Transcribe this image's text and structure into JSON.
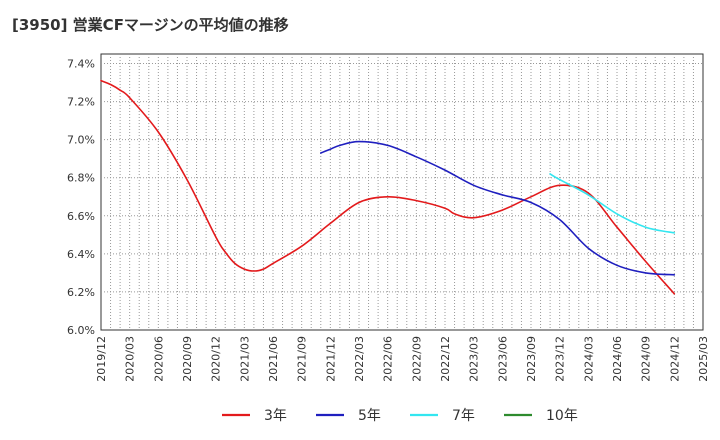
{
  "chart_data": {
    "type": "line",
    "title": "[3950]  営業CFマージンの平均値の推移",
    "xlabel": "",
    "ylabel": "",
    "x_ticks": [
      "2019/12",
      "2020/03",
      "2020/06",
      "2020/09",
      "2020/12",
      "2021/03",
      "2021/06",
      "2021/09",
      "2021/12",
      "2022/03",
      "2022/06",
      "2022/09",
      "2022/12",
      "2023/03",
      "2023/06",
      "2023/09",
      "2023/12",
      "2024/03",
      "2024/06",
      "2024/09",
      "2024/12",
      "2025/03"
    ],
    "y_ticks": [
      "6.0%",
      "6.2%",
      "6.4%",
      "6.6%",
      "6.8%",
      "7.0%",
      "7.2%",
      "7.4%"
    ],
    "ylim": [
      6.0,
      7.45
    ],
    "grid": true,
    "legend_position": "bottom",
    "series": [
      {
        "name": "3年",
        "color": "#e31a1c",
        "points": [
          [
            "2019/12",
            7.31
          ],
          [
            "2020/01",
            7.29
          ],
          [
            "2020/02",
            7.26
          ],
          [
            "2020/03",
            7.22
          ],
          [
            "2020/06",
            7.04
          ],
          [
            "2020/09",
            6.79
          ],
          [
            "2020/12",
            6.49
          ],
          [
            "2021/01",
            6.41
          ],
          [
            "2021/02",
            6.35
          ],
          [
            "2021/03",
            6.32
          ],
          [
            "2021/04",
            6.31
          ],
          [
            "2021/05",
            6.32
          ],
          [
            "2021/06",
            6.35
          ],
          [
            "2021/09",
            6.44
          ],
          [
            "2021/12",
            6.56
          ],
          [
            "2022/03",
            6.67
          ],
          [
            "2022/06",
            6.7
          ],
          [
            "2022/09",
            6.68
          ],
          [
            "2022/12",
            6.64
          ],
          [
            "2023/01",
            6.61
          ],
          [
            "2023/03",
            6.59
          ],
          [
            "2023/06",
            6.63
          ],
          [
            "2023/09",
            6.7
          ],
          [
            "2023/12",
            6.76
          ],
          [
            "2024/03",
            6.72
          ],
          [
            "2024/06",
            6.54
          ],
          [
            "2024/09",
            6.36
          ],
          [
            "2024/12",
            6.19
          ]
        ]
      },
      {
        "name": "5年",
        "color": "#1f1fbf",
        "points": [
          [
            "2021/11",
            6.93
          ],
          [
            "2021/12",
            6.95
          ],
          [
            "2022/01",
            6.97
          ],
          [
            "2022/03",
            6.99
          ],
          [
            "2022/06",
            6.97
          ],
          [
            "2022/09",
            6.91
          ],
          [
            "2022/12",
            6.84
          ],
          [
            "2023/03",
            6.76
          ],
          [
            "2023/06",
            6.71
          ],
          [
            "2023/09",
            6.67
          ],
          [
            "2023/12",
            6.58
          ],
          [
            "2024/03",
            6.43
          ],
          [
            "2024/06",
            6.34
          ],
          [
            "2024/09",
            6.3
          ],
          [
            "2024/12",
            6.29
          ]
        ]
      },
      {
        "name": "7年",
        "color": "#33e6f0",
        "points": [
          [
            "2023/11",
            6.82
          ],
          [
            "2023/12",
            6.79
          ],
          [
            "2024/03",
            6.71
          ],
          [
            "2024/06",
            6.61
          ],
          [
            "2024/09",
            6.54
          ],
          [
            "2024/12",
            6.51
          ]
        ]
      },
      {
        "name": "10年",
        "color": "#2e8b2e",
        "points": []
      }
    ]
  }
}
